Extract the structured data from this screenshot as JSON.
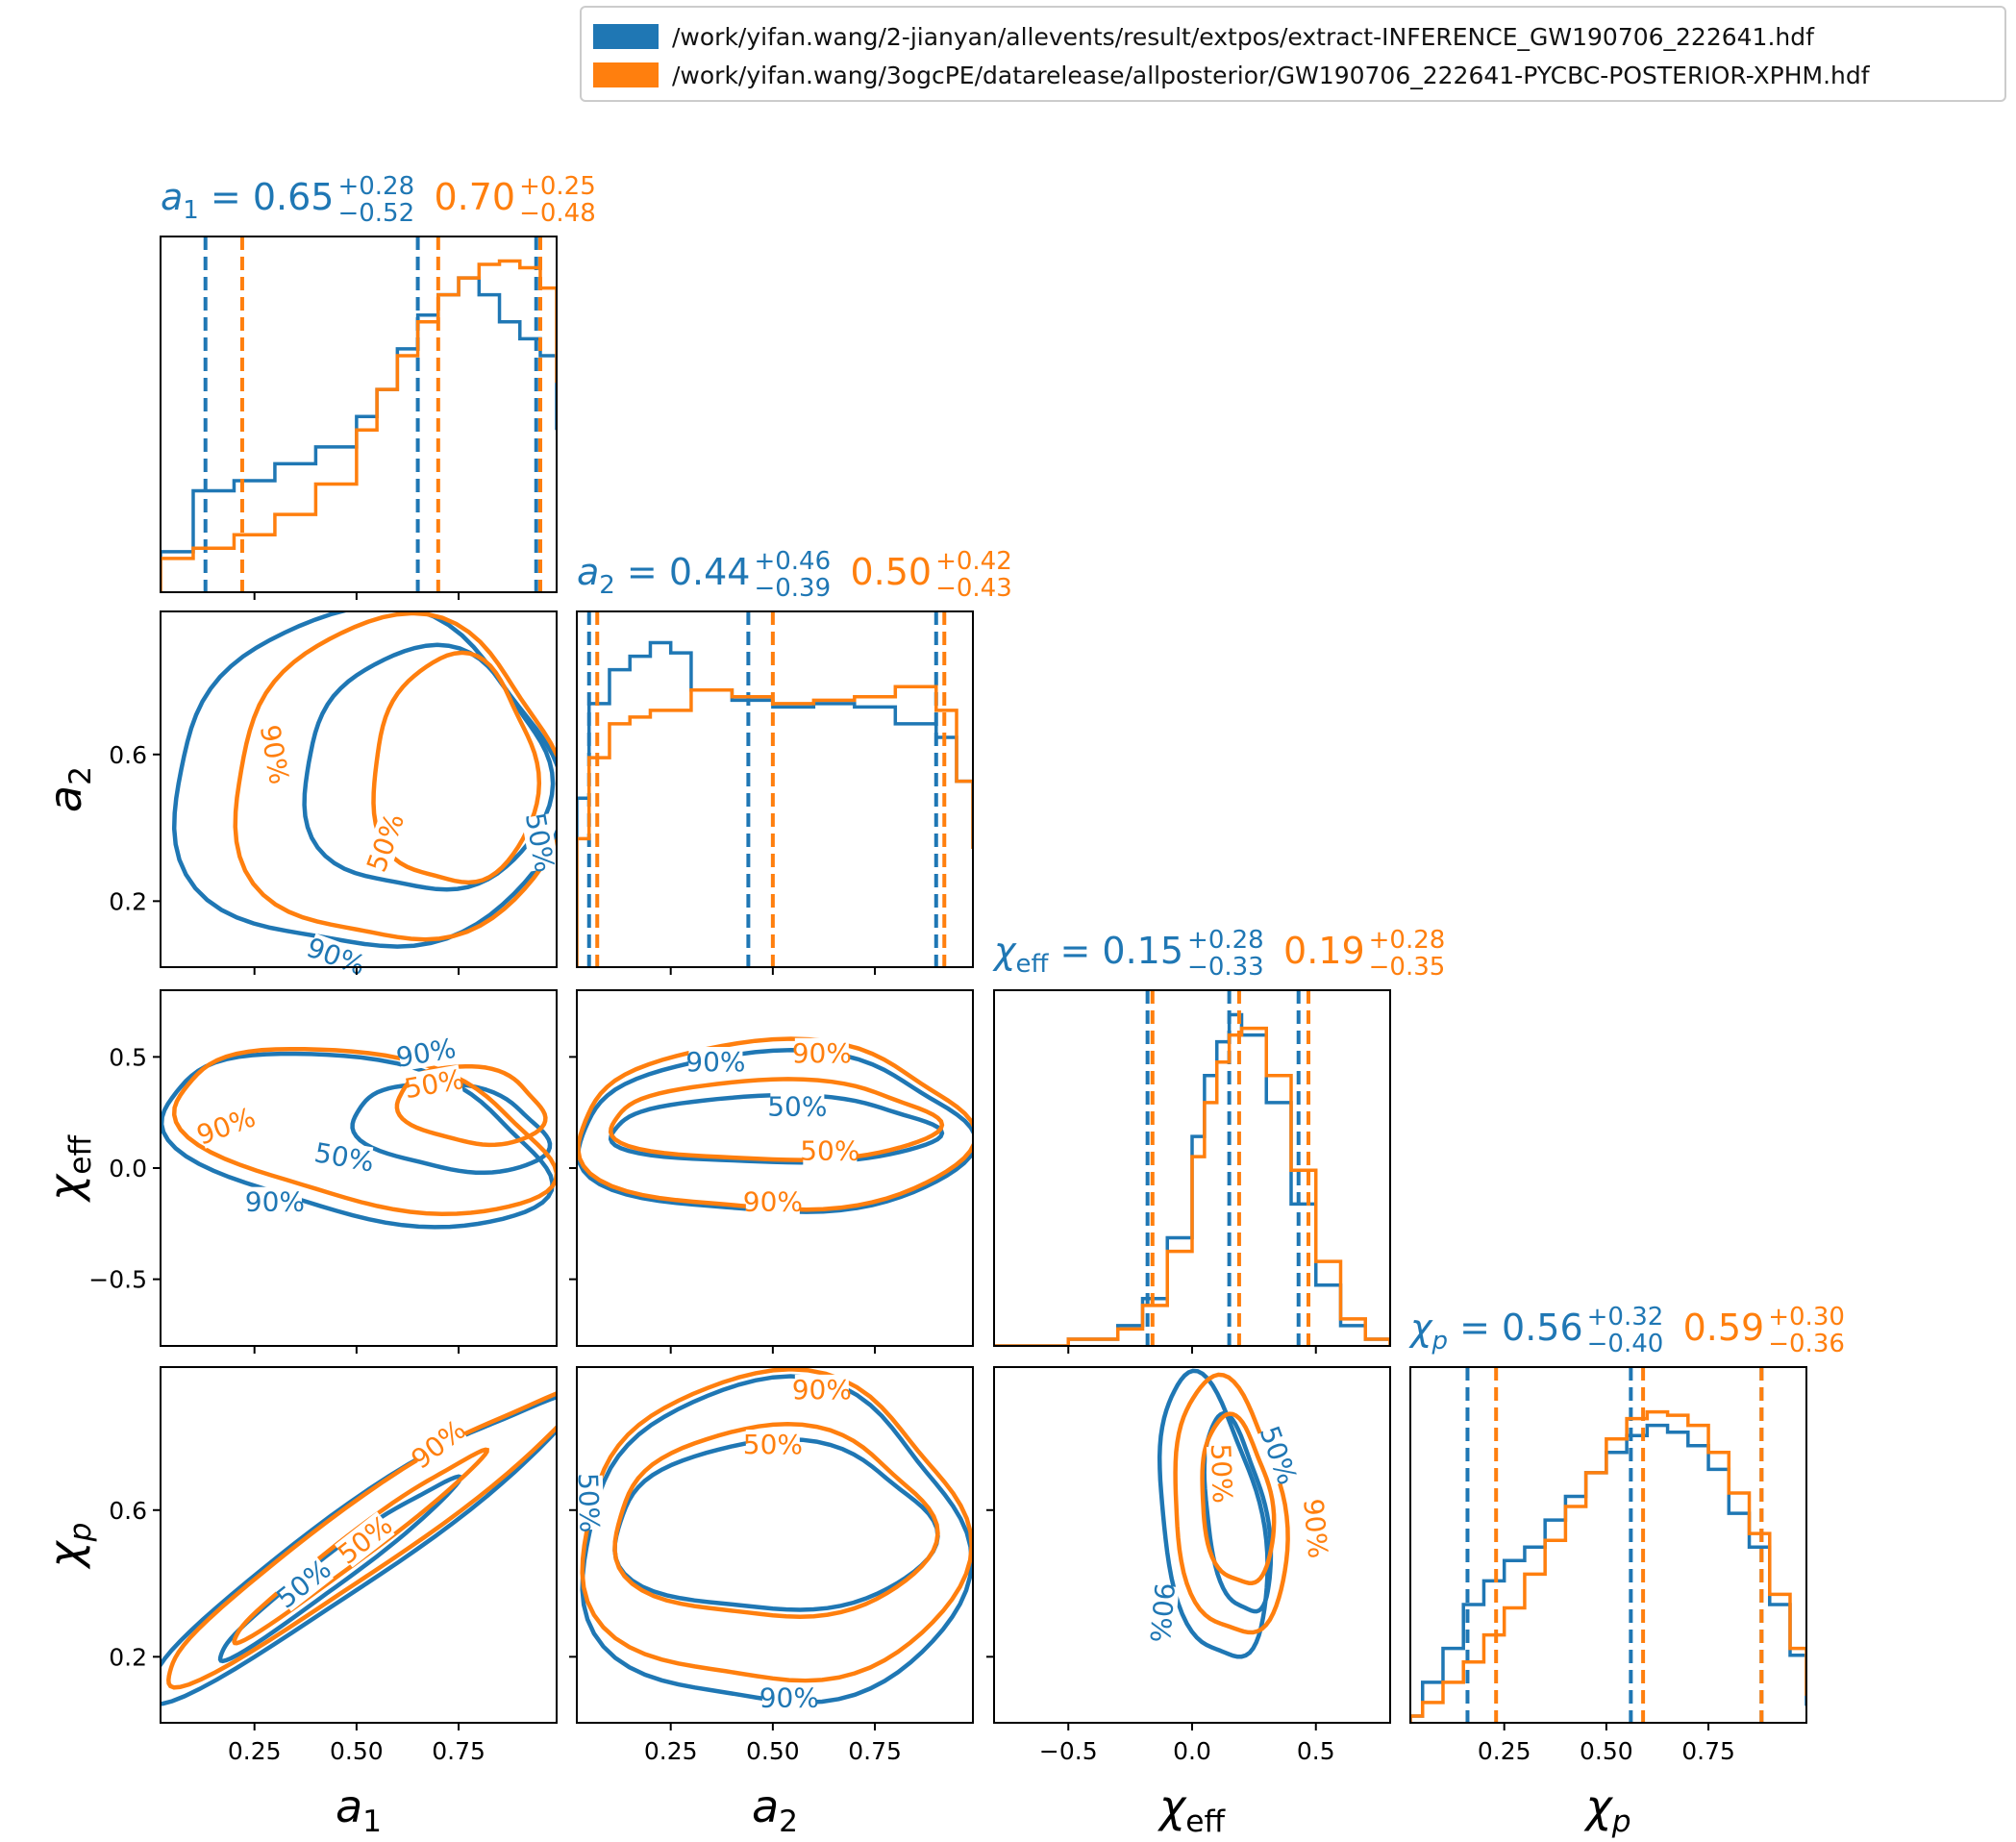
{
  "legend": {
    "entries": [
      {
        "label": "/work/yifan.wang/2-jianyan/allevents/result/extpos/extract-INFERENCE_GW190706_222641.hdf",
        "color": "#1f77b4"
      },
      {
        "label": "/work/yifan.wang/3ogcPE/datarelease/allposterior/GW190706_222641-PYCBC-POSTERIOR-XPHM.hdf",
        "color": "#ff7f0e"
      }
    ]
  },
  "colors": {
    "series1": "#1f77b4",
    "series2": "#ff7f0e"
  },
  "chart_data": {
    "type": "corner",
    "parameters": [
      {
        "key": "a1",
        "label_base": "a",
        "label_sub": "1",
        "italic_sub": false,
        "range": [
          0.02,
          0.99
        ],
        "ticks": [
          0.25,
          0.5,
          0.75
        ],
        "tick_labels": [
          "0.25",
          "0.50",
          "0.75"
        ],
        "title": {
          "prefix_base": "a",
          "prefix_sub": "1",
          "series1": {
            "median": "0.65",
            "plus": "+0.28",
            "minus": "−0.52"
          },
          "series2": {
            "median": "0.70",
            "plus": "+0.25",
            "minus": "−0.48"
          }
        }
      },
      {
        "key": "a2",
        "label_base": "a",
        "label_sub": "2",
        "italic_sub": false,
        "range": [
          0.02,
          0.99
        ],
        "ticks": [
          0.25,
          0.5,
          0.75
        ],
        "tick_labels": [
          "0.25",
          "0.50",
          "0.75"
        ],
        "ticks_y": [
          0.2,
          0.6
        ],
        "tick_labels_y": [
          "0.2",
          "0.6"
        ],
        "title": {
          "prefix_base": "a",
          "prefix_sub": "2",
          "series1": {
            "median": "0.44",
            "plus": "+0.46",
            "minus": "−0.39"
          },
          "series2": {
            "median": "0.50",
            "plus": "+0.42",
            "minus": "−0.43"
          }
        }
      },
      {
        "key": "chi_eff",
        "label_base": "χ",
        "label_sub": "eff",
        "italic_sub": false,
        "range": [
          -0.8,
          0.8
        ],
        "ticks": [
          -0.5,
          0.0,
          0.5
        ],
        "tick_labels": [
          "−0.5",
          "0.0",
          "0.5"
        ],
        "title": {
          "prefix_base": "χ",
          "prefix_sub": "eff",
          "series1": {
            "median": "0.15",
            "plus": "+0.28",
            "minus": "−0.33"
          },
          "series2": {
            "median": "0.19",
            "plus": "+0.28",
            "minus": "−0.35"
          }
        }
      },
      {
        "key": "chi_p",
        "label_base": "χ",
        "label_sub": "p",
        "italic_sub": true,
        "range": [
          0.02,
          0.99
        ],
        "ticks": [
          0.25,
          0.5,
          0.75
        ],
        "tick_labels": [
          "0.25",
          "0.50",
          "0.75"
        ],
        "ticks_y": [
          0.2,
          0.6
        ],
        "tick_labels_y": [
          "0.2",
          "0.6"
        ],
        "title": {
          "prefix_base": "χ",
          "prefix_sub": "p",
          "series1": {
            "median": "0.56",
            "plus": "+0.32",
            "minus": "−0.40"
          },
          "series2": {
            "median": "0.59",
            "plus": "+0.30",
            "minus": "−0.36"
          }
        }
      }
    ],
    "histograms": {
      "a1": {
        "series1": {
          "x": [
            0.02,
            0.1,
            0.2,
            0.3,
            0.4,
            0.5,
            0.55,
            0.6,
            0.65,
            0.7,
            0.75,
            0.8,
            0.85,
            0.9,
            0.95,
            0.99
          ],
          "y": [
            0.12,
            0.3,
            0.33,
            0.38,
            0.43,
            0.52,
            0.6,
            0.72,
            0.82,
            0.88,
            0.93,
            0.88,
            0.8,
            0.75,
            0.7,
            0.48
          ],
          "quantiles": [
            0.13,
            0.65,
            0.94
          ]
        },
        "series2": {
          "x": [
            0.02,
            0.1,
            0.2,
            0.3,
            0.4,
            0.5,
            0.55,
            0.6,
            0.65,
            0.7,
            0.75,
            0.8,
            0.85,
            0.9,
            0.95,
            0.99
          ],
          "y": [
            0.1,
            0.13,
            0.17,
            0.23,
            0.32,
            0.48,
            0.6,
            0.7,
            0.8,
            0.88,
            0.93,
            0.97,
            0.98,
            0.96,
            0.9,
            0.62
          ],
          "quantiles": [
            0.22,
            0.7,
            0.95
          ]
        }
      },
      "a2": {
        "series1": {
          "x": [
            0.02,
            0.05,
            0.1,
            0.15,
            0.2,
            0.25,
            0.3,
            0.4,
            0.5,
            0.6,
            0.7,
            0.8,
            0.9,
            0.95,
            0.99
          ],
          "y": [
            0.5,
            0.78,
            0.88,
            0.92,
            0.96,
            0.93,
            0.82,
            0.79,
            0.77,
            0.78,
            0.77,
            0.72,
            0.68,
            0.55,
            0.35
          ],
          "quantiles": [
            0.05,
            0.44,
            0.9
          ]
        },
        "series2": {
          "x": [
            0.02,
            0.05,
            0.1,
            0.15,
            0.2,
            0.3,
            0.4,
            0.5,
            0.6,
            0.7,
            0.8,
            0.9,
            0.95,
            0.99
          ],
          "y": [
            0.38,
            0.62,
            0.72,
            0.74,
            0.76,
            0.82,
            0.8,
            0.78,
            0.79,
            0.8,
            0.83,
            0.76,
            0.55,
            0.35
          ],
          "quantiles": [
            0.07,
            0.5,
            0.92
          ]
        }
      },
      "chi_eff": {
        "series1": {
          "x": [
            -0.8,
            -0.5,
            -0.3,
            -0.2,
            -0.1,
            0.0,
            0.05,
            0.1,
            0.15,
            0.2,
            0.3,
            0.4,
            0.5,
            0.6,
            0.7,
            0.8
          ],
          "y": [
            0.0,
            0.02,
            0.06,
            0.14,
            0.32,
            0.62,
            0.8,
            0.9,
            0.98,
            0.92,
            0.72,
            0.42,
            0.18,
            0.06,
            0.02,
            0.0
          ],
          "quantiles": [
            -0.18,
            0.15,
            0.43
          ]
        },
        "series2": {
          "x": [
            -0.8,
            -0.5,
            -0.3,
            -0.2,
            -0.1,
            0.0,
            0.05,
            0.1,
            0.15,
            0.2,
            0.3,
            0.4,
            0.5,
            0.6,
            0.7,
            0.8
          ],
          "y": [
            0.0,
            0.02,
            0.05,
            0.12,
            0.28,
            0.56,
            0.72,
            0.84,
            0.92,
            0.94,
            0.8,
            0.52,
            0.25,
            0.08,
            0.02,
            0.0
          ],
          "quantiles": [
            -0.16,
            0.19,
            0.47
          ]
        }
      },
      "chi_p": {
        "series1": {
          "x": [
            0.02,
            0.05,
            0.1,
            0.15,
            0.2,
            0.25,
            0.3,
            0.35,
            0.4,
            0.45,
            0.5,
            0.55,
            0.6,
            0.65,
            0.7,
            0.75,
            0.8,
            0.85,
            0.9,
            0.95,
            0.99
          ],
          "y": [
            0.02,
            0.12,
            0.22,
            0.35,
            0.42,
            0.48,
            0.52,
            0.6,
            0.67,
            0.74,
            0.8,
            0.85,
            0.88,
            0.86,
            0.82,
            0.75,
            0.62,
            0.52,
            0.35,
            0.2,
            0.05
          ],
          "quantiles": [
            0.16,
            0.56,
            0.88
          ]
        },
        "series2": {
          "x": [
            0.02,
            0.05,
            0.1,
            0.15,
            0.2,
            0.25,
            0.3,
            0.35,
            0.4,
            0.45,
            0.5,
            0.55,
            0.6,
            0.65,
            0.7,
            0.75,
            0.8,
            0.85,
            0.9,
            0.95,
            0.99
          ],
          "y": [
            0.02,
            0.06,
            0.12,
            0.18,
            0.26,
            0.34,
            0.44,
            0.54,
            0.64,
            0.74,
            0.84,
            0.9,
            0.92,
            0.91,
            0.88,
            0.8,
            0.68,
            0.56,
            0.38,
            0.22,
            0.08
          ],
          "quantiles": [
            0.23,
            0.59,
            0.88
          ]
        }
      }
    },
    "contours": [
      {
        "x": "a1",
        "y": "a2",
        "series1": {
          "c90": {
            "cx": 0.52,
            "cy": 0.52,
            "rx": 0.47,
            "ry": 0.46
          },
          "c50": {
            "cx": 0.67,
            "cy": 0.55,
            "rx": 0.3,
            "ry": 0.33
          }
        },
        "series2": {
          "c90": {
            "cx": 0.6,
            "cy": 0.52,
            "rx": 0.4,
            "ry": 0.44
          },
          "c50": {
            "cx": 0.74,
            "cy": 0.55,
            "rx": 0.2,
            "ry": 0.31
          }
        }
      },
      {
        "x": "a1",
        "y": "chi_eff",
        "series1": {
          "c90": {
            "cx": 0.5,
            "cy": 0.13,
            "rx": 0.48,
            "ry": 0.35,
            "rot": 14
          },
          "c50": {
            "cx": 0.73,
            "cy": 0.18,
            "rx": 0.24,
            "ry": 0.19,
            "rot": 10
          }
        },
        "series2": {
          "c90": {
            "cx": 0.52,
            "cy": 0.17,
            "rx": 0.47,
            "ry": 0.33,
            "rot": 14
          },
          "c50": {
            "cx": 0.78,
            "cy": 0.28,
            "rx": 0.18,
            "ry": 0.17,
            "rot": 10
          }
        }
      },
      {
        "x": "a2",
        "y": "chi_eff",
        "series1": {
          "c90": {
            "cx": 0.5,
            "cy": 0.15,
            "rx": 0.48,
            "ry": 0.36
          },
          "c50": {
            "cx": 0.5,
            "cy": 0.17,
            "rx": 0.4,
            "ry": 0.15
          }
        },
        "series2": {
          "c90": {
            "cx": 0.5,
            "cy": 0.18,
            "rx": 0.48,
            "ry": 0.38
          },
          "c50": {
            "cx": 0.5,
            "cy": 0.21,
            "rx": 0.4,
            "ry": 0.18
          }
        }
      },
      {
        "x": "a1",
        "y": "chi_p",
        "series1": {
          "c90": {
            "cx": 0.5,
            "cy": 0.5,
            "rx": 0.66,
            "ry": 0.1,
            "rot": -38
          },
          "c50": {
            "cx": 0.45,
            "cy": 0.44,
            "rx": 0.38,
            "ry": 0.04,
            "rot": -40
          }
        },
        "series2": {
          "c90": {
            "cx": 0.53,
            "cy": 0.53,
            "rx": 0.64,
            "ry": 0.09,
            "rot": -38
          },
          "c50": {
            "cx": 0.5,
            "cy": 0.5,
            "rx": 0.4,
            "ry": 0.035,
            "rot": -40
          }
        }
      },
      {
        "x": "a2",
        "y": "chi_p",
        "series1": {
          "c90": {
            "cx": 0.5,
            "cy": 0.5,
            "rx": 0.47,
            "ry": 0.44
          },
          "c50": {
            "cx": 0.5,
            "cy": 0.55,
            "rx": 0.39,
            "ry": 0.23
          }
        },
        "series2": {
          "c90": {
            "cx": 0.5,
            "cy": 0.54,
            "rx": 0.47,
            "ry": 0.42
          },
          "c50": {
            "cx": 0.5,
            "cy": 0.56,
            "rx": 0.39,
            "ry": 0.26
          }
        }
      },
      {
        "x": "chi_eff",
        "y": "chi_p",
        "series1": {
          "c90": {
            "cx": 0.08,
            "cy": 0.57,
            "rx": 0.2,
            "ry": 0.39,
            "rot": -8
          },
          "c50": {
            "cx": 0.18,
            "cy": 0.58,
            "rx": 0.12,
            "ry": 0.27,
            "rot": -8
          }
        },
        "series2": {
          "c90": {
            "cx": 0.15,
            "cy": 0.6,
            "rx": 0.22,
            "ry": 0.35,
            "rot": -6
          },
          "c50": {
            "cx": 0.18,
            "cy": 0.62,
            "rx": 0.14,
            "ry": 0.23,
            "rot": -6
          }
        }
      }
    ],
    "contour_labels": [
      {
        "x": "a1",
        "y": "a2",
        "series": "series2",
        "text": "90%",
        "at": [
          0.3,
          0.6
        ],
        "rot": 80
      },
      {
        "x": "a1",
        "y": "a2",
        "series": "series2",
        "text": "50%",
        "at": [
          0.57,
          0.36
        ],
        "rot": -70
      },
      {
        "x": "a1",
        "y": "a2",
        "series": "series1",
        "text": "50%",
        "at": [
          0.95,
          0.36
        ],
        "rot": 80
      },
      {
        "x": "a1",
        "y": "a2",
        "series": "series1",
        "text": "90%",
        "at": [
          0.45,
          0.05
        ],
        "rot": 20
      },
      {
        "x": "a1",
        "y": "chi_eff",
        "series": "series1",
        "text": "90%",
        "at": [
          0.67,
          0.52
        ],
        "rot": -10
      },
      {
        "x": "a1",
        "y": "chi_eff",
        "series": "series2",
        "text": "50%",
        "at": [
          0.69,
          0.38
        ],
        "rot": -10
      },
      {
        "x": "a1",
        "y": "chi_eff",
        "series": "series2",
        "text": "90%",
        "at": [
          0.18,
          0.19
        ],
        "rot": -20
      },
      {
        "x": "a1",
        "y": "chi_eff",
        "series": "series1",
        "text": "50%",
        "at": [
          0.47,
          0.05
        ],
        "rot": 10
      },
      {
        "x": "a1",
        "y": "chi_eff",
        "series": "series1",
        "text": "90%",
        "at": [
          0.3,
          -0.15
        ],
        "rot": 0
      },
      {
        "x": "a2",
        "y": "chi_eff",
        "series": "series1",
        "text": "90%",
        "at": [
          0.36,
          0.48
        ],
        "rot": 0
      },
      {
        "x": "a2",
        "y": "chi_eff",
        "series": "series2",
        "text": "90%",
        "at": [
          0.62,
          0.52
        ],
        "rot": 0
      },
      {
        "x": "a2",
        "y": "chi_eff",
        "series": "series1",
        "text": "50%",
        "at": [
          0.56,
          0.28
        ],
        "rot": 0
      },
      {
        "x": "a2",
        "y": "chi_eff",
        "series": "series2",
        "text": "50%",
        "at": [
          0.64,
          0.08
        ],
        "rot": 0
      },
      {
        "x": "a2",
        "y": "chi_eff",
        "series": "series2",
        "text": "90%",
        "at": [
          0.5,
          -0.15
        ],
        "rot": 0
      },
      {
        "x": "a1",
        "y": "chi_p",
        "series": "series2",
        "text": "90%",
        "at": [
          0.7,
          0.78
        ],
        "rot": -38
      },
      {
        "x": "a1",
        "y": "chi_p",
        "series": "series2",
        "text": "50%",
        "at": [
          0.52,
          0.52
        ],
        "rot": -38
      },
      {
        "x": "a1",
        "y": "chi_p",
        "series": "series1",
        "text": "50%",
        "at": [
          0.37,
          0.4
        ],
        "rot": -38
      },
      {
        "x": "a2",
        "y": "chi_p",
        "series": "series2",
        "text": "90%",
        "at": [
          0.62,
          0.93
        ],
        "rot": 0
      },
      {
        "x": "a2",
        "y": "chi_p",
        "series": "series2",
        "text": "50%",
        "at": [
          0.5,
          0.78
        ],
        "rot": 0
      },
      {
        "x": "a2",
        "y": "chi_p",
        "series": "series1",
        "text": "50%",
        "at": [
          0.05,
          0.62
        ],
        "rot": 88
      },
      {
        "x": "a2",
        "y": "chi_p",
        "series": "series1",
        "text": "90%",
        "at": [
          0.54,
          0.09
        ],
        "rot": 0
      },
      {
        "x": "chi_eff",
        "y": "chi_p",
        "series": "series2",
        "text": "50%",
        "at": [
          0.12,
          0.7
        ],
        "rot": 88
      },
      {
        "x": "chi_eff",
        "y": "chi_p",
        "series": "series1",
        "text": "50%",
        "at": [
          0.35,
          0.75
        ],
        "rot": 70
      },
      {
        "x": "chi_eff",
        "y": "chi_p",
        "series": "series2",
        "text": "90%",
        "at": [
          0.5,
          0.55
        ],
        "rot": 85
      },
      {
        "x": "chi_eff",
        "y": "chi_p",
        "series": "series1",
        "text": "90%",
        "at": [
          -0.12,
          0.32
        ],
        "rot": 95
      }
    ]
  }
}
